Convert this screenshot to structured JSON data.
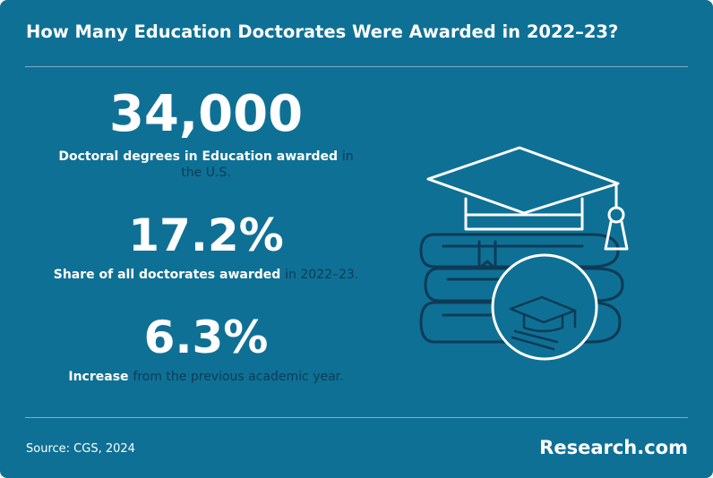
{
  "header": {
    "title": "How Many Education Doctorates Were Awarded in 2022–23?"
  },
  "stats": [
    {
      "value": "34,000",
      "label_lead": "Doctoral degrees in Education awarded",
      "label_rest": "in the U.S."
    },
    {
      "value": "17.2%",
      "label_lead": "Share of all doctorates awarded",
      "label_rest": "in 2022–23."
    },
    {
      "value": "6.3%",
      "label_lead": "Increase",
      "label_rest": "from the previous academic year."
    }
  ],
  "footer": {
    "source": "Source: CGS, 2024",
    "brand": "Research.com"
  }
}
